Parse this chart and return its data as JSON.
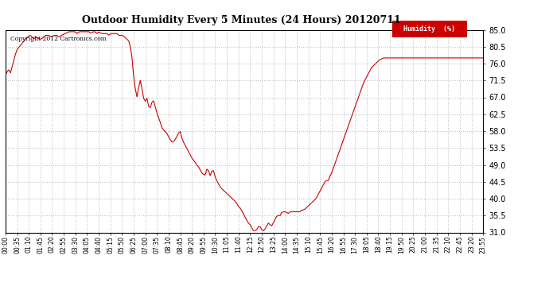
{
  "title": "Outdoor Humidity Every 5 Minutes (24 Hours) 20120711",
  "copyright": "Copyright 2012 Cartronics.com",
  "legend_label": "Humidity  (%)",
  "line_color": "#cc0000",
  "background_color": "#ffffff",
  "grid_color": "#bbbbbb",
  "ylim": [
    31.0,
    85.0
  ],
  "yticks": [
    31.0,
    35.5,
    40.0,
    44.5,
    49.0,
    53.5,
    58.0,
    62.5,
    67.0,
    71.5,
    76.0,
    80.5,
    85.0
  ],
  "xtick_labels": [
    "00:00",
    "00:35",
    "01:10",
    "01:45",
    "02:20",
    "02:55",
    "03:30",
    "04:05",
    "04:40",
    "05:15",
    "05:50",
    "06:25",
    "07:00",
    "07:35",
    "08:10",
    "08:45",
    "09:20",
    "09:55",
    "10:30",
    "11:05",
    "11:40",
    "12:15",
    "12:50",
    "13:25",
    "14:00",
    "14:35",
    "15:10",
    "15:45",
    "16:20",
    "16:55",
    "17:30",
    "18:05",
    "18:40",
    "19:15",
    "19:50",
    "20:25",
    "21:00",
    "21:35",
    "22:10",
    "22:45",
    "23:20",
    "23:55"
  ],
  "ctrl_points": [
    [
      0.0,
      73.0
    ],
    [
      0.15,
      74.5
    ],
    [
      0.25,
      73.5
    ],
    [
      0.4,
      76.5
    ],
    [
      0.55,
      79.5
    ],
    [
      0.7,
      80.5
    ],
    [
      0.85,
      81.5
    ],
    [
      1.0,
      82.5
    ],
    [
      1.1,
      83.0
    ],
    [
      1.2,
      83.5
    ],
    [
      1.3,
      83.5
    ],
    [
      1.4,
      82.5
    ],
    [
      1.5,
      83.0
    ],
    [
      1.6,
      83.0
    ],
    [
      1.7,
      82.5
    ],
    [
      1.8,
      82.5
    ],
    [
      2.0,
      83.5
    ],
    [
      2.1,
      83.5
    ],
    [
      2.2,
      83.5
    ],
    [
      2.3,
      83.0
    ],
    [
      2.4,
      83.5
    ],
    [
      2.5,
      83.5
    ],
    [
      2.6,
      83.5
    ],
    [
      2.7,
      83.0
    ],
    [
      2.8,
      83.5
    ],
    [
      3.0,
      84.0
    ],
    [
      3.2,
      84.5
    ],
    [
      3.3,
      84.5
    ],
    [
      3.4,
      84.5
    ],
    [
      3.5,
      84.5
    ],
    [
      3.6,
      84.0
    ],
    [
      3.7,
      84.5
    ],
    [
      3.8,
      84.5
    ],
    [
      4.0,
      84.5
    ],
    [
      4.1,
      84.5
    ],
    [
      4.2,
      84.5
    ],
    [
      4.3,
      84.0
    ],
    [
      4.4,
      84.5
    ],
    [
      4.5,
      84.5
    ],
    [
      4.6,
      84.0
    ],
    [
      4.7,
      84.5
    ],
    [
      4.8,
      84.0
    ],
    [
      4.9,
      84.0
    ],
    [
      5.0,
      84.0
    ],
    [
      5.1,
      84.0
    ],
    [
      5.2,
      83.5
    ],
    [
      5.3,
      84.0
    ],
    [
      5.4,
      84.0
    ],
    [
      5.5,
      84.0
    ],
    [
      5.6,
      84.0
    ],
    [
      5.7,
      83.5
    ],
    [
      5.8,
      83.5
    ],
    [
      5.9,
      83.5
    ],
    [
      6.0,
      83.0
    ],
    [
      6.1,
      82.5
    ],
    [
      6.2,
      82.0
    ],
    [
      6.3,
      80.0
    ],
    [
      6.35,
      78.0
    ],
    [
      6.4,
      75.0
    ],
    [
      6.45,
      72.0
    ],
    [
      6.5,
      70.0
    ],
    [
      6.55,
      68.5
    ],
    [
      6.6,
      67.0
    ],
    [
      6.65,
      68.0
    ],
    [
      6.7,
      70.0
    ],
    [
      6.75,
      72.0
    ],
    [
      6.8,
      71.0
    ],
    [
      6.85,
      69.5
    ],
    [
      6.9,
      68.0
    ],
    [
      6.95,
      66.5
    ],
    [
      7.0,
      65.5
    ],
    [
      7.05,
      66.5
    ],
    [
      7.1,
      67.0
    ],
    [
      7.15,
      65.5
    ],
    [
      7.2,
      64.5
    ],
    [
      7.25,
      64.0
    ],
    [
      7.3,
      64.5
    ],
    [
      7.35,
      65.5
    ],
    [
      7.4,
      66.5
    ],
    [
      7.45,
      66.0
    ],
    [
      7.5,
      65.0
    ],
    [
      7.6,
      63.0
    ],
    [
      7.7,
      61.5
    ],
    [
      7.8,
      60.0
    ],
    [
      7.85,
      59.0
    ],
    [
      7.9,
      58.5
    ],
    [
      8.0,
      58.0
    ],
    [
      8.1,
      57.5
    ],
    [
      8.15,
      57.0
    ],
    [
      8.2,
      56.5
    ],
    [
      8.25,
      56.0
    ],
    [
      8.3,
      55.5
    ],
    [
      8.4,
      55.0
    ],
    [
      8.5,
      55.5
    ],
    [
      8.6,
      56.5
    ],
    [
      8.7,
      57.5
    ],
    [
      8.75,
      58.5
    ],
    [
      8.8,
      57.5
    ],
    [
      8.85,
      56.5
    ],
    [
      8.9,
      55.5
    ],
    [
      9.0,
      54.5
    ],
    [
      9.05,
      54.0
    ],
    [
      9.1,
      53.5
    ],
    [
      9.2,
      52.5
    ],
    [
      9.3,
      51.5
    ],
    [
      9.35,
      51.0
    ],
    [
      9.4,
      50.5
    ],
    [
      9.5,
      50.0
    ],
    [
      9.55,
      49.5
    ],
    [
      9.6,
      49.0
    ],
    [
      9.7,
      48.5
    ],
    [
      9.75,
      48.0
    ],
    [
      9.8,
      47.5
    ],
    [
      9.85,
      47.0
    ],
    [
      9.9,
      46.5
    ],
    [
      9.95,
      46.5
    ],
    [
      10.0,
      46.0
    ],
    [
      10.05,
      46.5
    ],
    [
      10.1,
      47.5
    ],
    [
      10.15,
      48.5
    ],
    [
      10.2,
      47.5
    ],
    [
      10.25,
      46.5
    ],
    [
      10.3,
      46.0
    ],
    [
      10.35,
      47.0
    ],
    [
      10.4,
      48.0
    ],
    [
      10.45,
      47.5
    ],
    [
      10.5,
      46.5
    ],
    [
      10.55,
      45.5
    ],
    [
      10.6,
      45.0
    ],
    [
      10.65,
      44.5
    ],
    [
      10.7,
      44.0
    ],
    [
      10.75,
      43.5
    ],
    [
      10.8,
      43.0
    ],
    [
      10.9,
      42.5
    ],
    [
      11.0,
      42.0
    ],
    [
      11.1,
      41.5
    ],
    [
      11.2,
      41.0
    ],
    [
      11.3,
      40.5
    ],
    [
      11.4,
      40.0
    ],
    [
      11.5,
      39.5
    ],
    [
      11.6,
      39.0
    ],
    [
      11.65,
      38.5
    ],
    [
      11.7,
      38.0
    ],
    [
      11.75,
      37.5
    ],
    [
      11.8,
      37.5
    ],
    [
      11.85,
      37.0
    ],
    [
      11.9,
      36.5
    ],
    [
      11.95,
      36.0
    ],
    [
      12.0,
      35.5
    ],
    [
      12.05,
      35.0
    ],
    [
      12.1,
      34.5
    ],
    [
      12.15,
      34.0
    ],
    [
      12.2,
      33.5
    ],
    [
      12.25,
      33.5
    ],
    [
      12.3,
      33.0
    ],
    [
      12.35,
      32.5
    ],
    [
      12.4,
      32.0
    ],
    [
      12.45,
      31.5
    ],
    [
      12.5,
      31.5
    ],
    [
      12.55,
      31.5
    ],
    [
      12.6,
      31.5
    ],
    [
      12.65,
      32.0
    ],
    [
      12.7,
      32.5
    ],
    [
      12.75,
      33.0
    ],
    [
      12.8,
      32.5
    ],
    [
      12.85,
      32.0
    ],
    [
      12.9,
      31.5
    ],
    [
      12.95,
      31.5
    ],
    [
      13.0,
      31.5
    ],
    [
      13.05,
      32.0
    ],
    [
      13.1,
      32.5
    ],
    [
      13.15,
      33.0
    ],
    [
      13.2,
      33.5
    ],
    [
      13.25,
      33.5
    ],
    [
      13.3,
      33.0
    ],
    [
      13.35,
      32.5
    ],
    [
      13.4,
      33.0
    ],
    [
      13.45,
      33.5
    ],
    [
      13.5,
      34.0
    ],
    [
      13.55,
      34.5
    ],
    [
      13.6,
      35.0
    ],
    [
      13.65,
      35.5
    ],
    [
      13.7,
      35.5
    ],
    [
      13.75,
      35.5
    ],
    [
      13.8,
      35.5
    ],
    [
      13.85,
      36.0
    ],
    [
      13.9,
      36.5
    ],
    [
      14.0,
      36.5
    ],
    [
      14.1,
      36.5
    ],
    [
      14.2,
      36.0
    ],
    [
      14.3,
      36.5
    ],
    [
      14.4,
      36.5
    ],
    [
      14.5,
      36.5
    ],
    [
      14.6,
      36.5
    ],
    [
      14.7,
      36.5
    ],
    [
      14.8,
      36.5
    ],
    [
      14.9,
      37.0
    ],
    [
      15.0,
      37.0
    ],
    [
      15.1,
      37.5
    ],
    [
      15.2,
      38.0
    ],
    [
      15.3,
      38.5
    ],
    [
      15.4,
      39.0
    ],
    [
      15.5,
      39.5
    ],
    [
      15.6,
      40.0
    ],
    [
      15.7,
      41.0
    ],
    [
      15.8,
      42.0
    ],
    [
      15.9,
      43.0
    ],
    [
      16.0,
      44.0
    ],
    [
      16.1,
      45.0
    ],
    [
      16.2,
      44.5
    ],
    [
      16.3,
      46.0
    ],
    [
      16.4,
      47.0
    ],
    [
      16.5,
      48.5
    ],
    [
      16.6,
      50.0
    ],
    [
      16.7,
      51.5
    ],
    [
      16.8,
      53.0
    ],
    [
      16.9,
      54.5
    ],
    [
      17.0,
      56.0
    ],
    [
      17.1,
      57.5
    ],
    [
      17.2,
      59.0
    ],
    [
      17.3,
      60.5
    ],
    [
      17.4,
      62.0
    ],
    [
      17.5,
      63.5
    ],
    [
      17.6,
      65.0
    ],
    [
      17.7,
      66.5
    ],
    [
      17.8,
      68.0
    ],
    [
      17.9,
      69.5
    ],
    [
      18.0,
      71.0
    ],
    [
      18.1,
      72.0
    ],
    [
      18.2,
      73.0
    ],
    [
      18.3,
      74.0
    ],
    [
      18.4,
      75.0
    ],
    [
      18.5,
      75.5
    ],
    [
      18.6,
      76.0
    ],
    [
      18.7,
      76.5
    ],
    [
      18.8,
      77.0
    ],
    [
      19.0,
      77.5
    ],
    [
      24.0,
      77.5
    ]
  ]
}
